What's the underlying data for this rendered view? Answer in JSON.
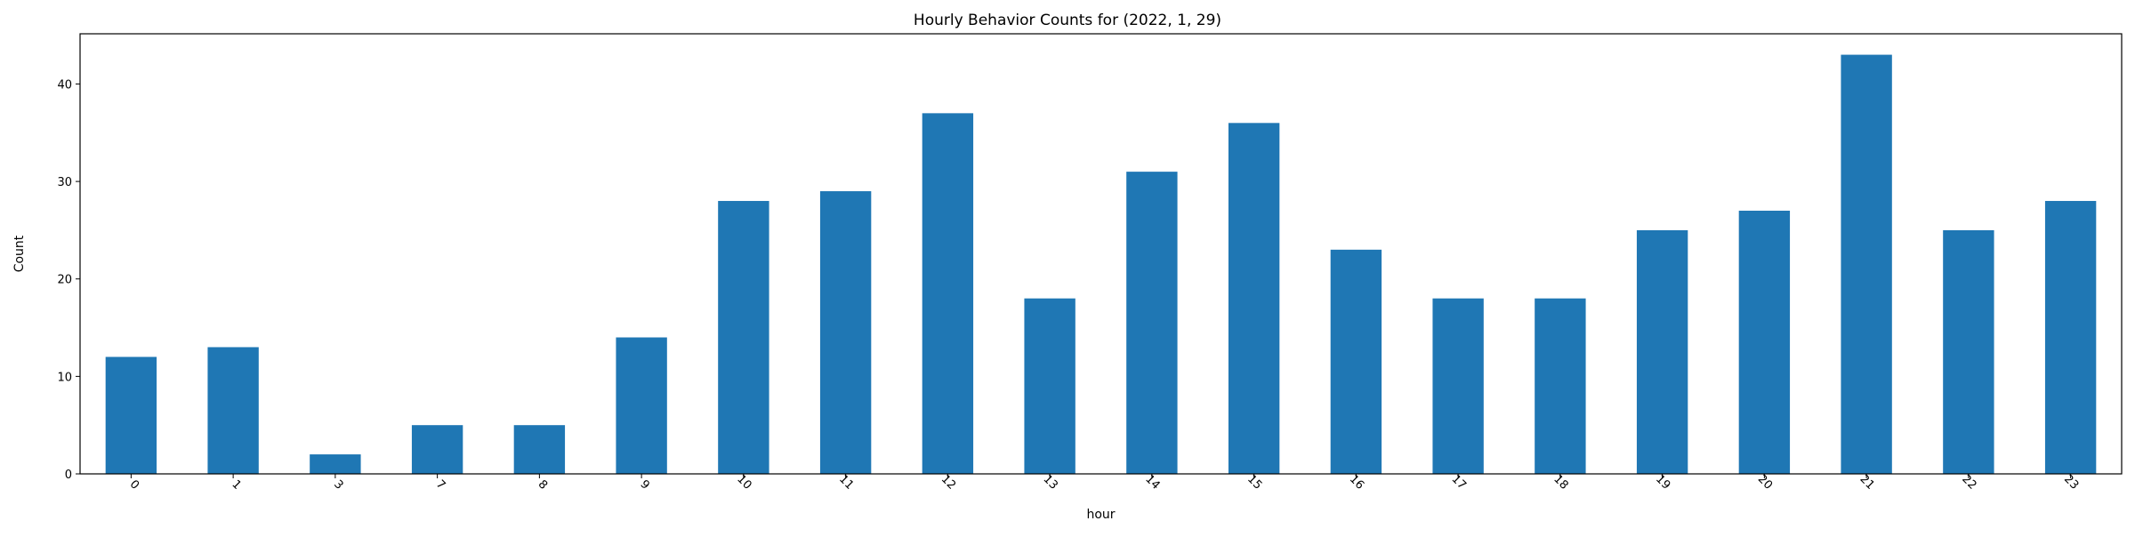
{
  "chart_data": {
    "type": "bar",
    "title": "Hourly Behavior Counts for (2022, 1, 29)",
    "xlabel": "hour",
    "ylabel": "Count",
    "categories": [
      "0",
      "1",
      "3",
      "7",
      "8",
      "9",
      "10",
      "11",
      "12",
      "13",
      "14",
      "15",
      "16",
      "17",
      "18",
      "19",
      "20",
      "21",
      "22",
      "23"
    ],
    "values": [
      12,
      13,
      2,
      5,
      5,
      14,
      28,
      29,
      37,
      18,
      31,
      36,
      23,
      18,
      18,
      25,
      27,
      43,
      25,
      28
    ],
    "ylim": [
      0,
      45.15
    ],
    "yticks": [
      0,
      10,
      20,
      30,
      40
    ],
    "grid": false,
    "legend": "none",
    "bar_color": "#1f77b4",
    "xtick_rotation": "45deg"
  }
}
